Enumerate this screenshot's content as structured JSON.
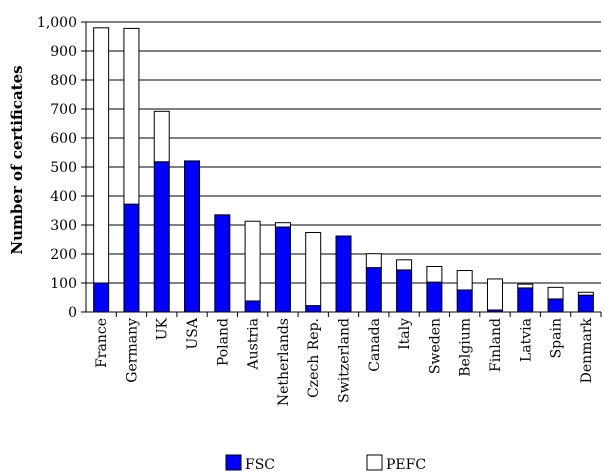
{
  "chart_data": {
    "type": "bar",
    "stacked": true,
    "title": "",
    "xlabel": "",
    "ylabel": "Number of certificates",
    "ylim": [
      0,
      1000
    ],
    "yticks": [
      "0",
      "100",
      "200",
      "300",
      "400",
      "500",
      "600",
      "700",
      "800",
      "900",
      "1,000"
    ],
    "grid": true,
    "legend_position": "bottom",
    "categories": [
      "France",
      "Germany",
      "UK",
      "USA",
      "Poland",
      "Austria",
      "Netherlands",
      "Czech Rep.",
      "Switzerland",
      "Canada",
      "Italy",
      "Sweden",
      "Belgium",
      "Finland",
      "Latvia",
      "Spain",
      "Denmark"
    ],
    "series": [
      {
        "name": "FSC",
        "color": "#0000ff",
        "values": [
          100,
          372,
          518,
          521,
          335,
          38,
          293,
          22,
          262,
          153,
          145,
          103,
          76,
          7,
          83,
          45,
          58
        ]
      },
      {
        "name": "PEFC",
        "color": "#ffffff",
        "values": [
          880,
          606,
          174,
          0,
          0,
          275,
          15,
          252,
          0,
          48,
          35,
          54,
          67,
          107,
          13,
          40,
          10
        ]
      }
    ]
  }
}
